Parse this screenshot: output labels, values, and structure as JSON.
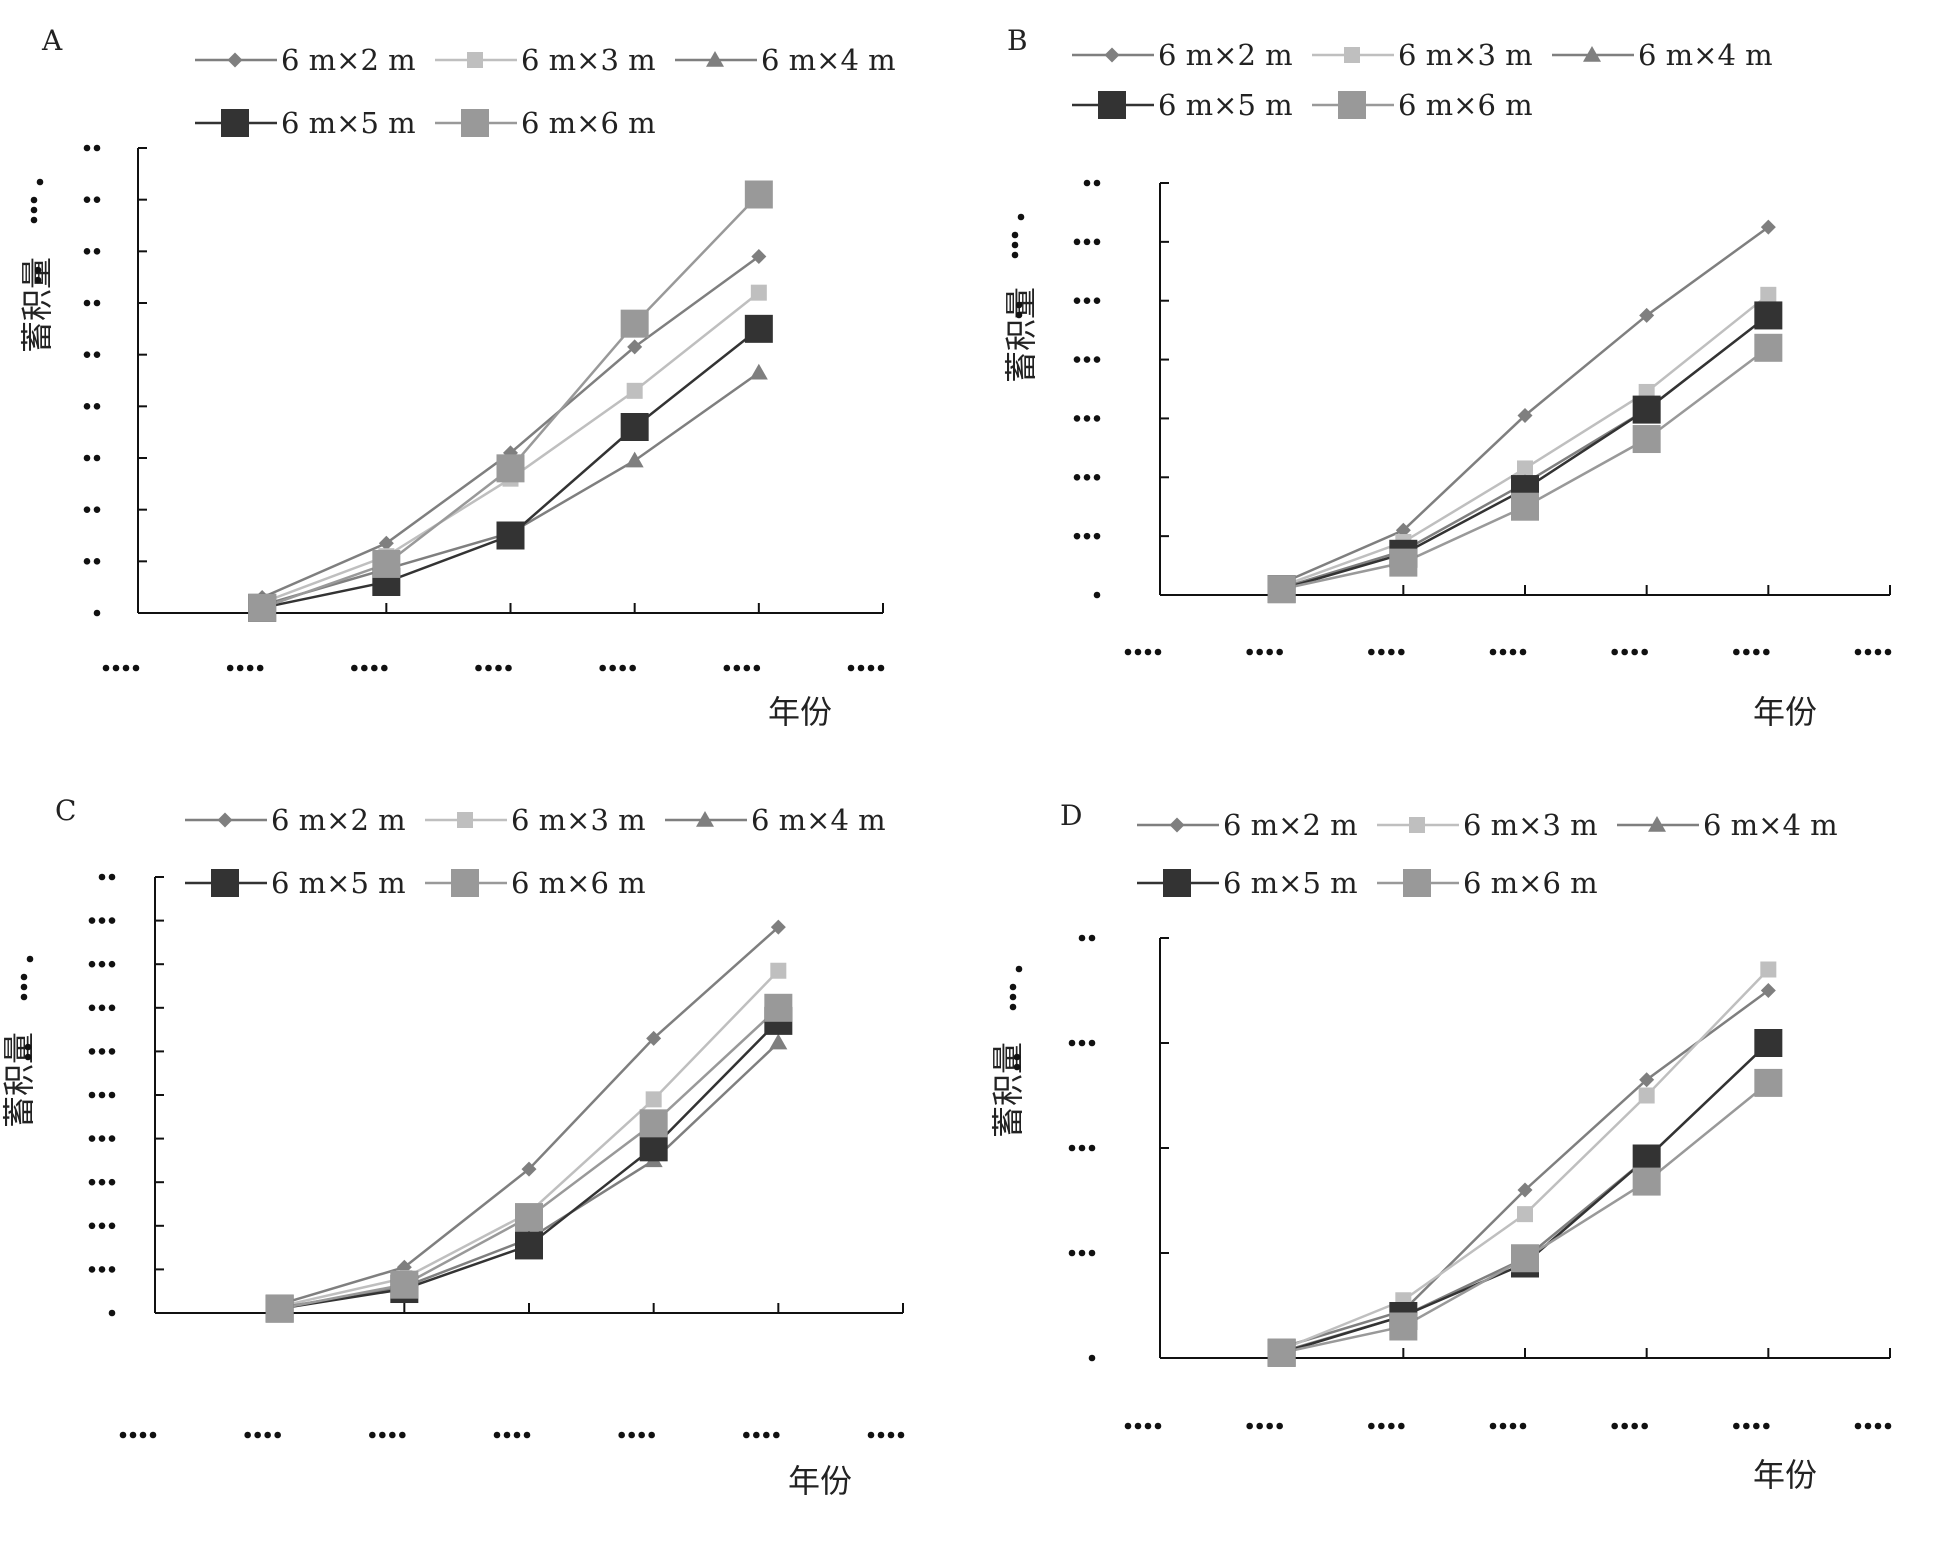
{
  "chart_data": [
    {
      "panel": "A",
      "type": "line",
      "ylabel": "蓄积量",
      "xlabel": "年份",
      "x_index": [
        1,
        2,
        3,
        4,
        5
      ],
      "x_tick_count": 7,
      "ylim": [
        0,
        9
      ],
      "y_tick_count": 10,
      "series": [
        {
          "name": "6 m×2 m",
          "marker": "diamond",
          "color": "#7f7f7f",
          "values": [
            0.3,
            1.35,
            3.1,
            5.15,
            6.9
          ]
        },
        {
          "name": "6 m×3 m",
          "marker": "square-small",
          "color": "#bfbfbf",
          "values": [
            0.2,
            1.1,
            2.6,
            4.3,
            6.2
          ]
        },
        {
          "name": "6 m×4 m",
          "marker": "triangle",
          "color": "#7f7f7f",
          "values": [
            0.15,
            0.85,
            1.55,
            2.95,
            4.65
          ]
        },
        {
          "name": "6 m×5 m",
          "marker": "square-large",
          "color": "#333333",
          "values": [
            0.1,
            0.6,
            1.5,
            3.6,
            5.5
          ]
        },
        {
          "name": "6 m×6 m",
          "marker": "square-large",
          "color": "#999999",
          "values": [
            0.1,
            0.95,
            2.8,
            5.6,
            8.1
          ]
        }
      ]
    },
    {
      "panel": "B",
      "type": "line",
      "ylabel": "蓄积量",
      "xlabel": "年份",
      "x_index": [
        1,
        2,
        3,
        4,
        5
      ],
      "x_tick_count": 7,
      "ylim": [
        0,
        7
      ],
      "y_tick_count": 8,
      "series": [
        {
          "name": "6 m×2 m",
          "marker": "diamond",
          "color": "#7f7f7f",
          "values": [
            0.2,
            1.1,
            3.05,
            4.75,
            6.25
          ]
        },
        {
          "name": "6 m×3 m",
          "marker": "square-small",
          "color": "#bfbfbf",
          "values": [
            0.15,
            0.9,
            2.15,
            3.45,
            5.1
          ]
        },
        {
          "name": "6 m×4 m",
          "marker": "triangle",
          "color": "#7f7f7f",
          "values": [
            0.12,
            0.75,
            1.9,
            3.15,
            4.75
          ]
        },
        {
          "name": "6 m×5 m",
          "marker": "square-large",
          "color": "#333333",
          "values": [
            0.1,
            0.7,
            1.8,
            3.15,
            4.75
          ]
        },
        {
          "name": "6 m×6 m",
          "marker": "square-large",
          "color": "#999999",
          "values": [
            0.1,
            0.55,
            1.5,
            2.65,
            4.2
          ]
        }
      ]
    },
    {
      "panel": "C",
      "type": "line",
      "ylabel": "蓄积量",
      "xlabel": "年份",
      "x_index": [
        1,
        2,
        3,
        4,
        5
      ],
      "x_tick_count": 7,
      "ylim": [
        0,
        10
      ],
      "y_tick_count": 11,
      "series": [
        {
          "name": "6 m×2 m",
          "marker": "diamond",
          "color": "#7f7f7f",
          "values": [
            0.2,
            1.05,
            3.3,
            6.3,
            8.85
          ]
        },
        {
          "name": "6 m×3 m",
          "marker": "square-small",
          "color": "#bfbfbf",
          "values": [
            0.15,
            0.8,
            2.3,
            4.9,
            7.85
          ]
        },
        {
          "name": "6 m×4 m",
          "marker": "triangle",
          "color": "#7f7f7f",
          "values": [
            0.12,
            0.6,
            1.7,
            3.5,
            6.2
          ]
        },
        {
          "name": "6 m×5 m",
          "marker": "square-large",
          "color": "#333333",
          "values": [
            0.1,
            0.55,
            1.55,
            3.8,
            6.7
          ]
        },
        {
          "name": "6 m×6 m",
          "marker": "square-large",
          "color": "#999999",
          "values": [
            0.1,
            0.65,
            2.2,
            4.35,
            7.0
          ]
        }
      ]
    },
    {
      "panel": "D",
      "type": "line",
      "ylabel": "蓄积量",
      "xlabel": "年份",
      "x_index": [
        1,
        2,
        3,
        4,
        5
      ],
      "x_tick_count": 7,
      "ylim": [
        0,
        4
      ],
      "y_tick_count": 5,
      "series": [
        {
          "name": "6 m×2 m",
          "marker": "diamond",
          "color": "#7f7f7f",
          "values": [
            0.1,
            0.45,
            1.6,
            2.65,
            3.5
          ]
        },
        {
          "name": "6 m×3 m",
          "marker": "square-small",
          "color": "#bfbfbf",
          "values": [
            0.08,
            0.55,
            1.37,
            2.5,
            3.7
          ]
        },
        {
          "name": "6 m×4 m",
          "marker": "triangle",
          "color": "#7f7f7f",
          "values": [
            0.06,
            0.4,
            0.95,
            1.9,
            3.0
          ]
        },
        {
          "name": "6 m×5 m",
          "marker": "square-large",
          "color": "#333333",
          "values": [
            0.05,
            0.4,
            0.9,
            1.9,
            3.0
          ]
        },
        {
          "name": "6 m×6 m",
          "marker": "square-large",
          "color": "#999999",
          "values": [
            0.05,
            0.3,
            0.95,
            1.68,
            2.62
          ]
        }
      ]
    }
  ]
}
